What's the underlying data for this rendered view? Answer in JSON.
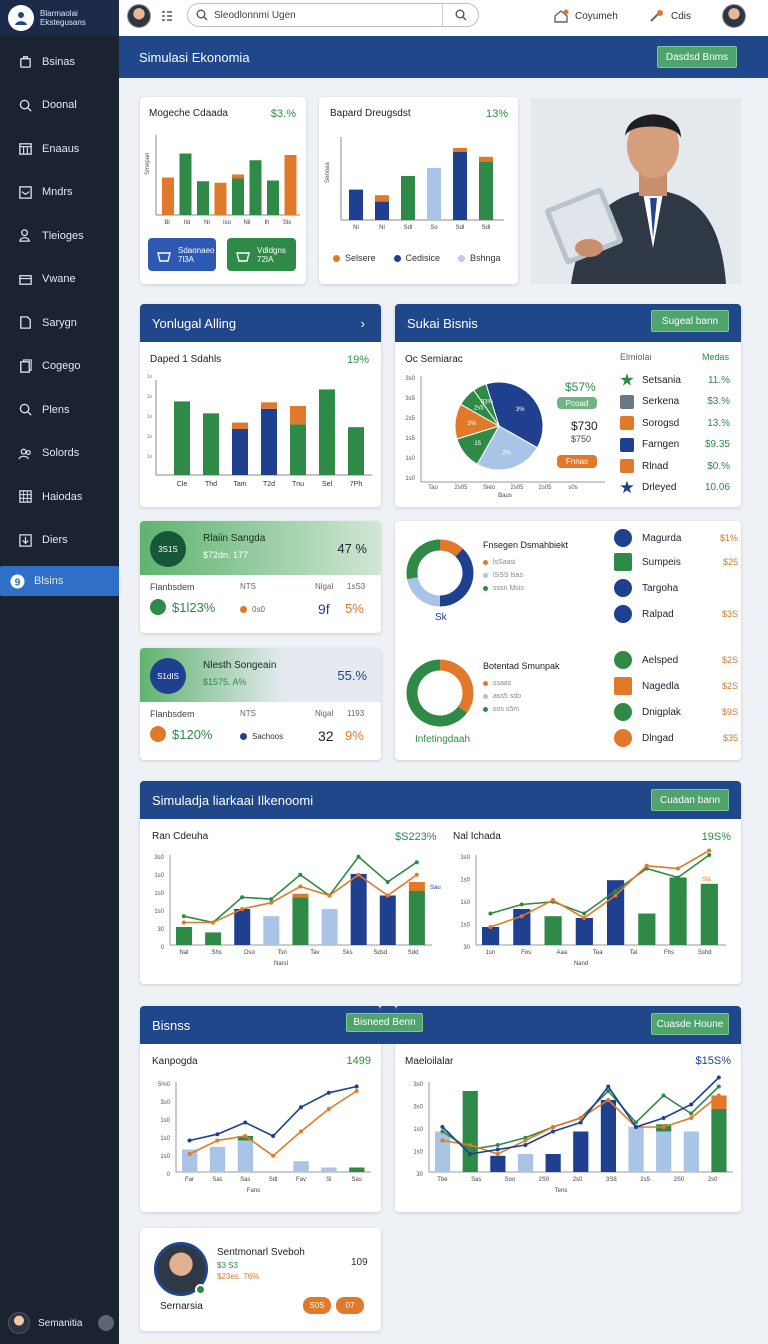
{
  "brand": {
    "line1": "Blarmaolai",
    "line2": "Ekstegusans"
  },
  "sidebar": {
    "items": [
      {
        "label": "Bsinas"
      },
      {
        "label": "Doonal"
      },
      {
        "label": "Enaaus"
      },
      {
        "label": "Mndrs"
      },
      {
        "label": "Tleioges"
      },
      {
        "label": "Vwane"
      },
      {
        "label": "Sarygn"
      },
      {
        "label": "Cogego"
      },
      {
        "label": "Plens"
      },
      {
        "label": "Solords"
      },
      {
        "label": "Haiodas"
      },
      {
        "label": "Diers"
      },
      {
        "label": "Blsins"
      }
    ],
    "user": "Semanitia"
  },
  "topbar": {
    "search_placeholder": "Sleodlonnmi Ugen",
    "link1": "Coyumeh",
    "link2": "Cdis"
  },
  "banner": {
    "title": "Simulasi Ekonomia",
    "button": "Dasdsd Bnms"
  },
  "card1": {
    "title": "Mogeche Cdaada",
    "value": "$3.%",
    "x_ticks": [
      "Bl",
      "Ild",
      "Nl",
      "Iso",
      "Nil",
      "Ih",
      "Sls"
    ],
    "y_label": "Smepan",
    "btn1_a": "Sdaonaeo",
    "btn1_b": "7l3A",
    "btn2_a": "Vdldgns",
    "btn2_b": "72IA"
  },
  "card2": {
    "title": "Bapard Dreugsdst",
    "value": "13%",
    "x_ticks": [
      "Nl",
      "Nl",
      "Sdl",
      "So",
      "Sdl",
      "Sdl"
    ],
    "y_label": "Sennaa",
    "legend": [
      "Selsere",
      "Cedisice",
      "Bshnga"
    ]
  },
  "sec2": {
    "title": "Yonlugal Alling",
    "chevron": "›",
    "chart_title": "Daped 1 Sdahls",
    "chart_value": "19%",
    "x_ticks": [
      "Cle",
      "Thd",
      "Tam",
      "T2d",
      "Tnu",
      "Sel",
      "7Ph"
    ]
  },
  "sec3": {
    "title": "Sukai Bisnis",
    "button": "Sugeal bann",
    "pie_title": "Oc Semiarac",
    "pie_big": "$57%",
    "pie_val": "$730",
    "pie_val2": "$750",
    "pie_pill1": "Pcoad",
    "pie_pill2": "Fnnas",
    "pie_xlabel": "Baus",
    "pie_x_ticks": [
      "Tao",
      "2s05",
      "Sieo",
      "2s05",
      "2s05",
      "s0s"
    ],
    "pie_y_ticks": [
      "3s0",
      "3s5",
      "2s5",
      "1s5",
      "1s0",
      "1s0"
    ],
    "pie_slices": [
      "3%",
      "2%",
      "15",
      "3%",
      "2s5",
      "33%",
      "3s%"
    ],
    "table_head": [
      "Elmiolai",
      "Medas"
    ],
    "table": [
      {
        "name": "Setsania",
        "value": "11.%"
      },
      {
        "name": "Serkena",
        "value": "$3.%"
      },
      {
        "name": "Sorogsd",
        "value": "13.%"
      },
      {
        "name": "Farngen",
        "value": "$9.35"
      },
      {
        "name": "Rlnad",
        "value": "$0.%"
      },
      {
        "name": "Drleyed",
        "value": "10.06"
      }
    ]
  },
  "kpi1": {
    "title": "Rlaiin Sangda",
    "sub": "$72dn. 177",
    "pct": "47 %",
    "icon_text": "3S1S",
    "l1": "Flanbsdem",
    "l2": "NTS",
    "l3": "Nigal",
    "l4": "1sS3",
    "value": "$1l23%",
    "b1": "0s0",
    "b2": "9f",
    "b3": "5%"
  },
  "kpi2": {
    "title": "Nlesth Songeain",
    "sub": "$1575. A%",
    "pct": "55.%",
    "icon_text": "S1dIS",
    "l1": "Flanbsdem",
    "l2": "NTS",
    "l3": "Nigal",
    "l4": "1193",
    "value": "$120%",
    "b1": "Sachoos",
    "b2": "32",
    "b3": "9%"
  },
  "donuts": {
    "title1": "Fnsegen Dsmahbiekt",
    "sub1": [
      "lsSaasi",
      "lSSS lsas",
      "sssn Msis"
    ],
    "label1": "Sk",
    "title2": "Botentad Smunpak",
    "sub2": [
      "ssaas",
      "ass5 sdo",
      "sos s5m"
    ],
    "label2": "Infetingdaah",
    "list1": [
      {
        "name": "Magurda",
        "value": "$1%"
      },
      {
        "name": "Sumpeis",
        "value": "$25"
      },
      {
        "name": "Targoha",
        "value": ""
      },
      {
        "name": "Ralpad",
        "value": "$3S"
      }
    ],
    "list2": [
      {
        "name": "Aelsped",
        "value": "$2S"
      },
      {
        "name": "Nagedla",
        "value": "$2S"
      },
      {
        "name": "Dnigplak",
        "value": "$9S"
      },
      {
        "name": "Dlngad",
        "value": "$35"
      }
    ]
  },
  "sec4": {
    "title": "Simuladja liarkaai Ilkenoomi",
    "button": "Cuadan bann",
    "c1_title": "Ran Cdeuha",
    "c1_value": "$S223%",
    "c1_xlabel": "Narsl",
    "c1_x_ticks": [
      "Nal",
      "Shs",
      "Oso",
      "Tsn",
      "Tav",
      "Sks",
      "Sdsd",
      "Sdd"
    ],
    "c1_y_ticks": [
      "3s0",
      "1s0",
      "1s0",
      "1s0",
      "30",
      "0"
    ],
    "c2_title": "Nal Ichada",
    "c2_value": "19S%",
    "c2_xlabel": "Nand",
    "c2_x_ticks": [
      "1sn",
      "Fos",
      "Aaa",
      "Tea",
      "Tal",
      "Fhs",
      "Sshd"
    ],
    "c2_y_ticks": [
      "3s0",
      "1s0",
      "1s0",
      "1s0",
      "30"
    ],
    "c1_tag": "Sau",
    "c2_tag": "Sla"
  },
  "sec5": {
    "title": "Bisnss",
    "button_mid": "Bisneed Benn",
    "button": "Cuasde Houne",
    "c1_title": "Kanpogda",
    "c1_value": "1499",
    "c1_xlabel": "Fans",
    "c1_x_ticks": [
      "Far",
      "Sas",
      "Sas",
      "Sdl",
      "Fav",
      "Sl",
      "Sas"
    ],
    "c1_y_ticks": [
      "5%0",
      "3s0",
      "1s0",
      "1s0",
      "1s0",
      "0"
    ],
    "c2_title": "Maeloilalar",
    "c2_value": "$15S%",
    "c2_xlabel": "Tens",
    "c2_x_ticks": [
      "Tbe",
      "Sas",
      "Soo",
      "2S0",
      "2s0",
      "3S8",
      "2s5",
      "2S0",
      "2s0"
    ],
    "c2_y_ticks": [
      "3s0",
      "3s0",
      "1s0",
      "1s0",
      "30"
    ]
  },
  "profile": {
    "name": "Sentmonarl Sveboh",
    "line2": "$3 S3",
    "line3": "$23es. 76%",
    "count": "109",
    "role": "Sernarsia",
    "btn1": "S0S",
    "btn2": "07"
  },
  "colors": {
    "navy": "#1f4789",
    "green": "#2f8a48",
    "orange": "#e07a2a",
    "light_blue": "#a9c4e6"
  }
}
